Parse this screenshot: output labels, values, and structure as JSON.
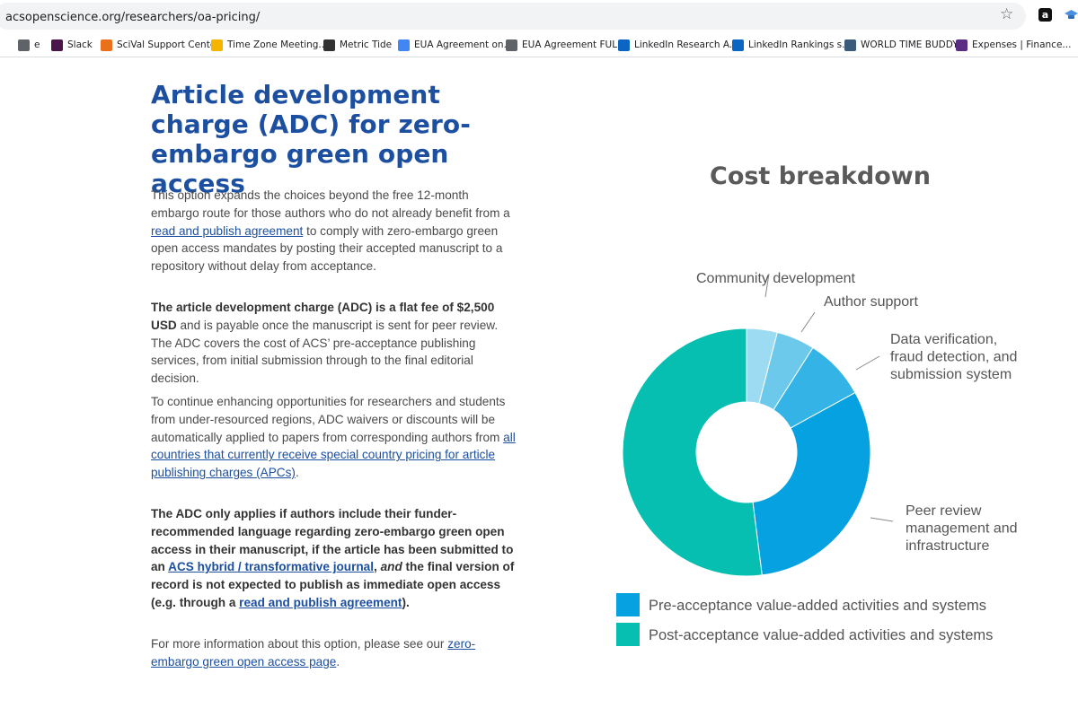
{
  "browser": {
    "url": "acsopenscience.org/researchers/oa-pricing/",
    "bookmarks": [
      {
        "label": "e",
        "color": "#5f6368"
      },
      {
        "label": "Slack",
        "color": "#4a154b"
      },
      {
        "label": "SciVal Support Center",
        "color": "#e9711c"
      },
      {
        "label": "Time Zone Meeting...",
        "color": "#f4b400"
      },
      {
        "label": "Metric Tide",
        "color": "#333333"
      },
      {
        "label": "EUA Agreement on...",
        "color": "#4285f4"
      },
      {
        "label": "EUA Agreement FUL...",
        "color": "#5f6368"
      },
      {
        "label": "LinkedIn Research A...",
        "color": "#0a66c2"
      },
      {
        "label": "LinkedIn Rankings s...",
        "color": "#0a66c2"
      },
      {
        "label": "WORLD TIME BUDDY",
        "color": "#3b5b7a"
      },
      {
        "label": "Expenses | Finance...",
        "color": "#5b2c83"
      }
    ]
  },
  "article": {
    "title": "Article development charge (ADC) for zero-embargo green open access",
    "p1": {
      "pre": "This option expands the choices beyond the free 12-month embargo route for those authors who do not already benefit from a ",
      "link": "read and publish agreement",
      "post": " to comply with zero-embargo green open access mandates by posting their accepted manuscript to a repository without delay from acceptance."
    },
    "p2": {
      "bold": "The article development charge (ADC) is a flat fee of $2,500 USD",
      "post": " and is payable once the manuscript is sent for peer review. The ADC covers the cost of ACS’ pre-acceptance publishing services, from initial submission through to the final editorial decision."
    },
    "p3": {
      "pre": "To continue enhancing opportunities for researchers and students from under-resourced regions, ADC waivers or discounts will be automatically applied to papers from corresponding authors from ",
      "link": "all countries that currently receive special country pricing for article publishing charges (APCs)",
      "post": "."
    },
    "p4": {
      "b1": "The ADC only applies if authors include their funder-recommended language regarding zero-embargo green open access in their manuscript, if the article has been submitted to an ",
      "link1": "ACS hybrid / transformative journal",
      "b2": ", ",
      "ital": "and",
      "b3": " the final version of record is not expected to publish as immediate open access (e.g. through a ",
      "link2": "read and publish agreement",
      "b4": ")."
    },
    "p5": {
      "pre": "For more information about this option, please see our ",
      "link": "zero-embargo green open access page",
      "post": "."
    }
  },
  "chart_data": {
    "type": "pie",
    "title": "Cost breakdown",
    "donut": true,
    "slices": [
      {
        "label": "Community development",
        "value": 4,
        "color": "#9ddbf2",
        "group": "pre"
      },
      {
        "label": "Author support",
        "value": 5,
        "color": "#6cc9ec",
        "group": "pre"
      },
      {
        "label": "Data verification, fraud detection, and submission system",
        "value": 8,
        "color": "#34b4e6",
        "group": "pre"
      },
      {
        "label": "Peer review management and infrastructure",
        "value": 31,
        "color": "#05a1e0",
        "group": "pre"
      },
      {
        "label": "Post-acceptance value-added activities and systems",
        "value": 52,
        "color": "#06bfb0",
        "group": "post"
      }
    ],
    "label_lines": [
      [
        "Community development"
      ],
      [
        "Author support"
      ],
      [
        "Data verification,",
        "fraud detection, and",
        "submission system"
      ],
      [
        "Peer review",
        "management and",
        "infrastructure"
      ]
    ],
    "legend": [
      {
        "label": "Pre-acceptance value-added activities and systems",
        "color": "#05a1e0"
      },
      {
        "label": "Post-acceptance value-added activities and systems",
        "color": "#06bfb0"
      }
    ]
  }
}
